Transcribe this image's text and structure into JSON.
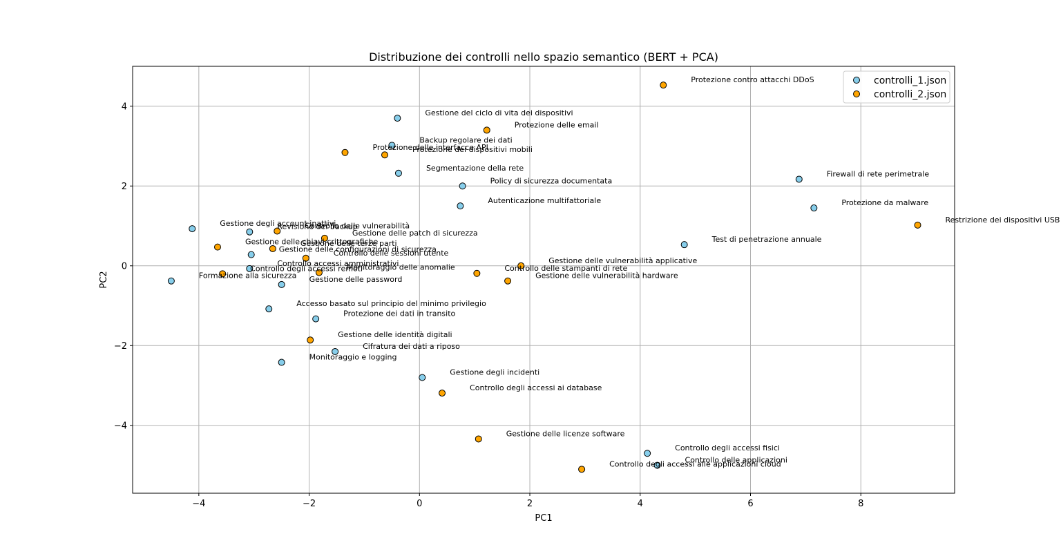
{
  "chart_data": {
    "type": "scatter",
    "title": "Distribuzione dei controlli nello spazio semantico (BERT + PCA)",
    "xlabel": "PC1",
    "ylabel": "PC2",
    "xlim": [
      -5.2,
      9.7
    ],
    "ylim": [
      -5.7,
      5.0
    ],
    "xticks": [
      -4,
      -2,
      0,
      2,
      4,
      6,
      8
    ],
    "yticks": [
      -4,
      -2,
      0,
      2,
      4
    ],
    "grid": true,
    "legend_position": "top-right",
    "series": [
      {
        "name": "controlli_1.json",
        "color": "#87ceeb",
        "points": [
          {
            "x": -0.4,
            "y": 3.7,
            "label": "Gestione del ciclo di vita dei dispositivi"
          },
          {
            "x": -0.5,
            "y": 3.02,
            "label": "Backup regolare dei dati"
          },
          {
            "x": -0.38,
            "y": 2.32,
            "label": "Segmentazione della rete"
          },
          {
            "x": 0.78,
            "y": 2.0,
            "label": "Policy di sicurezza documentata"
          },
          {
            "x": 0.74,
            "y": 1.5,
            "label": "Autenticazione multifattoriale"
          },
          {
            "x": 6.88,
            "y": 2.17,
            "label": "Firewall di rete perimetrale"
          },
          {
            "x": 7.15,
            "y": 1.45,
            "label": "Protezione da malware"
          },
          {
            "x": 4.8,
            "y": 0.53,
            "label": "Test di penetrazione annuale"
          },
          {
            "x": -4.12,
            "y": 0.93,
            "label": "Gestione degli account inattivi"
          },
          {
            "x": -3.08,
            "y": 0.85,
            "label": "Revisione dei backup"
          },
          {
            "x": -3.05,
            "y": 0.28,
            "label": "Gestione delle configurazioni di sicurezza"
          },
          {
            "x": -3.08,
            "y": -0.07,
            "label": "Controllo accessi amministrativi"
          },
          {
            "x": -4.5,
            "y": -0.38,
            "label": "Formazione alla sicurezza"
          },
          {
            "x": -2.5,
            "y": -0.47,
            "label": "Gestione delle password"
          },
          {
            "x": -2.73,
            "y": -1.08,
            "label": "Accesso basato sul principio del minimo privilegio"
          },
          {
            "x": -1.88,
            "y": -1.33,
            "label": "Protezione dei dati in transito"
          },
          {
            "x": -1.53,
            "y": -2.15,
            "label": "Cifratura dei dati a riposo"
          },
          {
            "x": -2.5,
            "y": -2.42,
            "label": "Monitoraggio e logging"
          },
          {
            "x": 0.05,
            "y": -2.8,
            "label": "Gestione degli incidenti"
          },
          {
            "x": 4.13,
            "y": -4.7,
            "label": "Controllo degli accessi fisici"
          },
          {
            "x": 4.31,
            "y": -5.0,
            "label": "Controllo delle applicazioni"
          }
        ]
      },
      {
        "name": "controlli_2.json",
        "color": "#ffa500",
        "points": [
          {
            "x": 4.42,
            "y": 4.53,
            "label": "Protezione contro attacchi DDoS"
          },
          {
            "x": 1.22,
            "y": 3.4,
            "label": "Protezione delle email"
          },
          {
            "x": -1.35,
            "y": 2.84,
            "label": "Protezione delle interfacce API"
          },
          {
            "x": -0.63,
            "y": 2.78,
            "label": "Protezione dei dispositivi mobili"
          },
          {
            "x": 9.03,
            "y": 1.02,
            "label": "Restrizione dei dispositivi USB"
          },
          {
            "x": -2.58,
            "y": 0.87,
            "label": "Controllo delle vulnerabilità"
          },
          {
            "x": -1.72,
            "y": 0.69,
            "label": "Gestione delle patch di sicurezza"
          },
          {
            "x": -3.66,
            "y": 0.47,
            "label": "Gestione delle chiavi crittografiche"
          },
          {
            "x": -2.66,
            "y": 0.43,
            "label": "Gestione delle terze parti"
          },
          {
            "x": -2.06,
            "y": 0.19,
            "label": "Controllo delle sessioni utente"
          },
          {
            "x": -3.57,
            "y": -0.2,
            "label": "Controllo degli accessi remoti"
          },
          {
            "x": -1.82,
            "y": -0.17,
            "label": "Monitoraggio delle anomalie"
          },
          {
            "x": 1.84,
            "y": 0.0,
            "label": "Gestione delle vulnerabilità applicative"
          },
          {
            "x": 1.04,
            "y": -0.19,
            "label": "Controllo delle stampanti di rete"
          },
          {
            "x": 1.6,
            "y": -0.38,
            "label": "Gestione delle vulnerabilità hardware"
          },
          {
            "x": -1.98,
            "y": -1.86,
            "label": "Gestione delle identità digitali"
          },
          {
            "x": 0.41,
            "y": -3.19,
            "label": "Controllo degli accessi ai database"
          },
          {
            "x": 1.07,
            "y": -4.34,
            "label": "Gestione delle licenze software"
          },
          {
            "x": 2.94,
            "y": -5.1,
            "label": "Controllo degli accessi alle applicazioni cloud"
          }
        ]
      }
    ]
  }
}
